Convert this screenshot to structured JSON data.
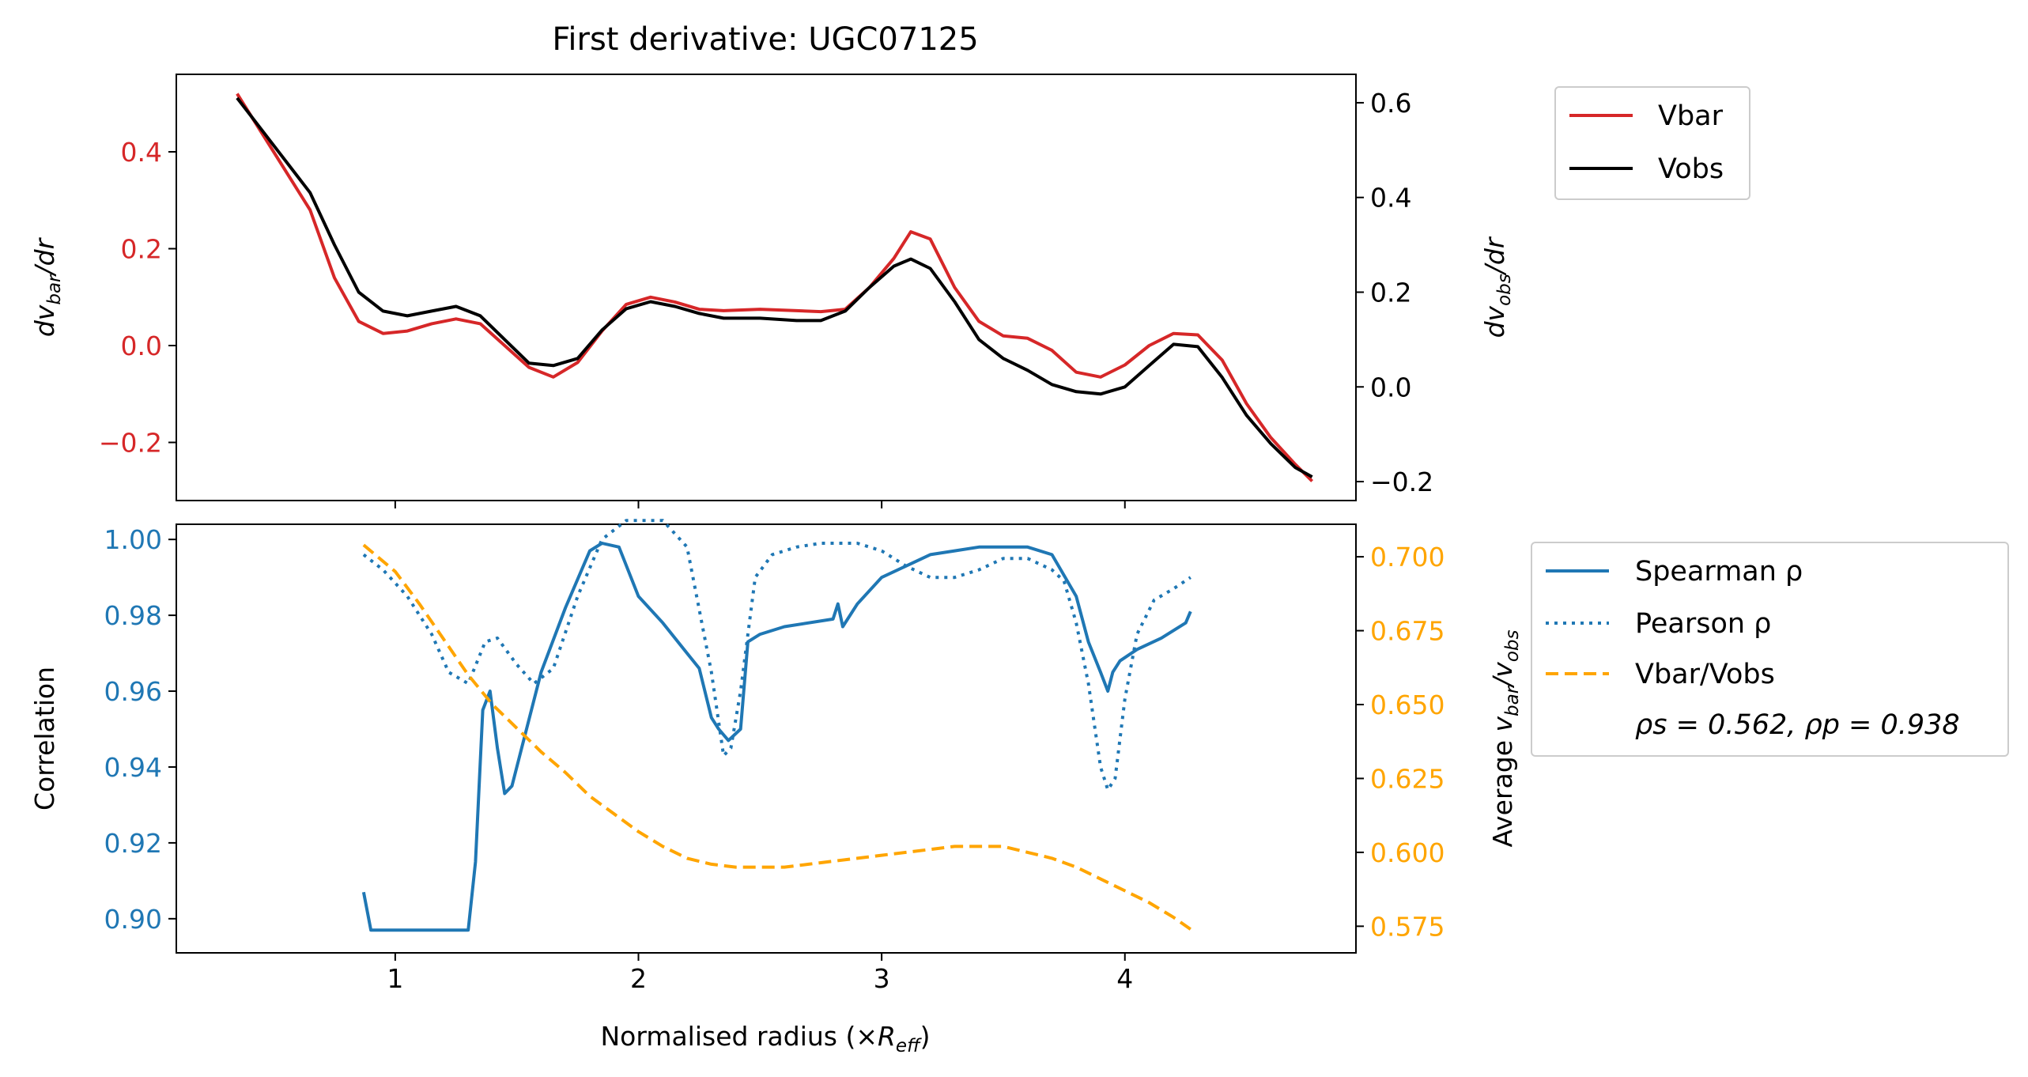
{
  "chart_data": [
    {
      "panel": "top",
      "type": "line",
      "title": "First derivative: UGC07125",
      "xlim": [
        0.1,
        4.95
      ],
      "x_ticks": [
        "1",
        "2",
        "3",
        "4"
      ],
      "ylabel_left": "dv_bar/dr",
      "ylabel_right": "dv_obs/dr",
      "ylim_left": [
        -0.32,
        0.56
      ],
      "ylim_right": [
        -0.24,
        0.66
      ],
      "y_ticks_left": [
        "0.4",
        "0.2",
        "0.0",
        "−0.2"
      ],
      "y_ticks_right": [
        "0.6",
        "0.4",
        "0.2",
        "0.0",
        "−0.2"
      ],
      "left_axis_color": "#d62728",
      "right_axis_color": "#000000",
      "legend_position": "upper-right (outside)",
      "series": [
        {
          "name": "Vbar",
          "axis": "left",
          "color": "#d62728",
          "x": [
            0.35,
            0.5,
            0.65,
            0.75,
            0.85,
            0.95,
            1.05,
            1.15,
            1.25,
            1.35,
            1.45,
            1.55,
            1.65,
            1.75,
            1.85,
            1.95,
            2.05,
            2.15,
            2.25,
            2.35,
            2.5,
            2.65,
            2.75,
            2.85,
            2.95,
            3.05,
            3.12,
            3.2,
            3.3,
            3.4,
            3.5,
            3.6,
            3.7,
            3.8,
            3.9,
            4.0,
            4.1,
            4.2,
            4.3,
            4.4,
            4.5,
            4.6,
            4.7,
            4.77
          ],
          "y": [
            0.52,
            0.4,
            0.28,
            0.14,
            0.05,
            0.025,
            0.03,
            0.045,
            0.055,
            0.045,
            0.0,
            -0.045,
            -0.065,
            -0.035,
            0.03,
            0.085,
            0.1,
            0.09,
            0.075,
            0.072,
            0.075,
            0.072,
            0.07,
            0.075,
            0.12,
            0.18,
            0.235,
            0.22,
            0.12,
            0.05,
            0.02,
            0.015,
            -0.01,
            -0.055,
            -0.065,
            -0.04,
            0.0,
            0.025,
            0.022,
            -0.03,
            -0.12,
            -0.19,
            -0.245,
            -0.28
          ]
        },
        {
          "name": "Vobs",
          "axis": "right",
          "color": "#000000",
          "x": [
            0.35,
            0.5,
            0.65,
            0.75,
            0.85,
            0.95,
            1.05,
            1.15,
            1.25,
            1.35,
            1.45,
            1.55,
            1.65,
            1.75,
            1.85,
            1.95,
            2.05,
            2.15,
            2.25,
            2.35,
            2.5,
            2.65,
            2.75,
            2.85,
            2.95,
            3.05,
            3.12,
            3.2,
            3.3,
            3.4,
            3.5,
            3.6,
            3.7,
            3.8,
            3.9,
            4.0,
            4.1,
            4.2,
            4.3,
            4.4,
            4.5,
            4.6,
            4.7,
            4.77
          ],
          "y": [
            0.61,
            0.51,
            0.41,
            0.3,
            0.2,
            0.16,
            0.15,
            0.16,
            0.17,
            0.15,
            0.1,
            0.05,
            0.045,
            0.06,
            0.12,
            0.165,
            0.18,
            0.17,
            0.155,
            0.145,
            0.145,
            0.14,
            0.14,
            0.16,
            0.21,
            0.255,
            0.27,
            0.25,
            0.18,
            0.1,
            0.06,
            0.035,
            0.005,
            -0.01,
            -0.015,
            0.0,
            0.045,
            0.09,
            0.085,
            0.02,
            -0.06,
            -0.12,
            -0.17,
            -0.19
          ]
        }
      ]
    },
    {
      "panel": "bottom",
      "type": "line",
      "xlabel": "Normalised radius (×R_eff)",
      "xlim": [
        0.1,
        4.95
      ],
      "x_ticks": [
        "1",
        "2",
        "3",
        "4"
      ],
      "ylabel_left": "Correlation",
      "ylabel_right": "Average v_bar/v_obs",
      "ylim_left": [
        0.891,
        1.004
      ],
      "ylim_right": [
        0.566,
        0.711
      ],
      "y_ticks_left": [
        "1.00",
        "0.98",
        "0.96",
        "0.94",
        "0.92",
        "0.90"
      ],
      "y_ticks_right": [
        "0.700",
        "0.675",
        "0.650",
        "0.625",
        "0.600",
        "0.575"
      ],
      "left_axis_color": "#1f77b4",
      "right_axis_color": "#ffa500",
      "legend_position": "right (outside)",
      "annotation": "ρs = 0.562, ρp = 0.938",
      "series": [
        {
          "name": "Spearman ρ",
          "axis": "left",
          "color": "#1f77b4",
          "style": "solid",
          "x": [
            0.87,
            0.9,
            1.0,
            1.1,
            1.2,
            1.3,
            1.33,
            1.36,
            1.39,
            1.42,
            1.45,
            1.48,
            1.52,
            1.6,
            1.7,
            1.8,
            1.85,
            1.92,
            2.0,
            2.1,
            2.2,
            2.25,
            2.3,
            2.33,
            2.37,
            2.42,
            2.45,
            2.5,
            2.6,
            2.8,
            2.82,
            2.84,
            2.9,
            3.0,
            3.1,
            3.2,
            3.3,
            3.4,
            3.5,
            3.6,
            3.7,
            3.8,
            3.85,
            3.9,
            3.93,
            3.95,
            3.98,
            4.05,
            4.15,
            4.25,
            4.27
          ],
          "y": [
            0.907,
            0.897,
            0.897,
            0.897,
            0.897,
            0.897,
            0.915,
            0.955,
            0.96,
            0.945,
            0.933,
            0.935,
            0.945,
            0.965,
            0.982,
            0.997,
            0.999,
            0.998,
            0.985,
            0.978,
            0.97,
            0.966,
            0.953,
            0.95,
            0.947,
            0.95,
            0.973,
            0.975,
            0.977,
            0.979,
            0.983,
            0.977,
            0.983,
            0.99,
            0.993,
            0.996,
            0.997,
            0.998,
            0.998,
            0.998,
            0.996,
            0.985,
            0.973,
            0.965,
            0.96,
            0.965,
            0.968,
            0.971,
            0.974,
            0.978,
            0.981
          ]
        },
        {
          "name": "Pearson ρ",
          "axis": "left",
          "color": "#1f77b4",
          "style": "dotted",
          "x": [
            0.87,
            0.95,
            1.05,
            1.15,
            1.22,
            1.3,
            1.37,
            1.42,
            1.5,
            1.57,
            1.65,
            1.75,
            1.85,
            1.95,
            2.1,
            2.2,
            2.3,
            2.35,
            2.38,
            2.42,
            2.48,
            2.55,
            2.65,
            2.75,
            2.9,
            3.0,
            3.1,
            3.2,
            3.3,
            3.4,
            3.5,
            3.6,
            3.7,
            3.75,
            3.8,
            3.85,
            3.9,
            3.93,
            3.96,
            4.0,
            4.05,
            4.12,
            4.2,
            4.27
          ],
          "y": [
            0.996,
            0.992,
            0.985,
            0.975,
            0.965,
            0.962,
            0.973,
            0.974,
            0.967,
            0.962,
            0.966,
            0.985,
            1.0,
            1.005,
            1.005,
            0.998,
            0.965,
            0.943,
            0.945,
            0.96,
            0.99,
            0.996,
            0.998,
            0.999,
            0.999,
            0.997,
            0.993,
            0.99,
            0.99,
            0.992,
            0.995,
            0.995,
            0.992,
            0.989,
            0.978,
            0.962,
            0.94,
            0.934,
            0.937,
            0.958,
            0.975,
            0.984,
            0.987,
            0.99
          ]
        },
        {
          "name": "Vbar/Vobs",
          "axis": "right",
          "color": "#ffa500",
          "style": "dashed",
          "x": [
            0.87,
            1.0,
            1.1,
            1.2,
            1.3,
            1.4,
            1.5,
            1.6,
            1.7,
            1.8,
            1.9,
            2.0,
            2.1,
            2.2,
            2.3,
            2.4,
            2.5,
            2.6,
            2.7,
            2.8,
            2.9,
            3.0,
            3.1,
            3.2,
            3.3,
            3.4,
            3.5,
            3.6,
            3.7,
            3.8,
            3.9,
            4.0,
            4.1,
            4.2,
            4.27
          ],
          "y": [
            0.704,
            0.695,
            0.684,
            0.672,
            0.66,
            0.65,
            0.642,
            0.634,
            0.627,
            0.619,
            0.613,
            0.607,
            0.602,
            0.598,
            0.596,
            0.595,
            0.595,
            0.595,
            0.596,
            0.597,
            0.598,
            0.599,
            0.6,
            0.601,
            0.602,
            0.602,
            0.602,
            0.6,
            0.598,
            0.595,
            0.591,
            0.587,
            0.583,
            0.578,
            0.574
          ]
        }
      ]
    }
  ]
}
